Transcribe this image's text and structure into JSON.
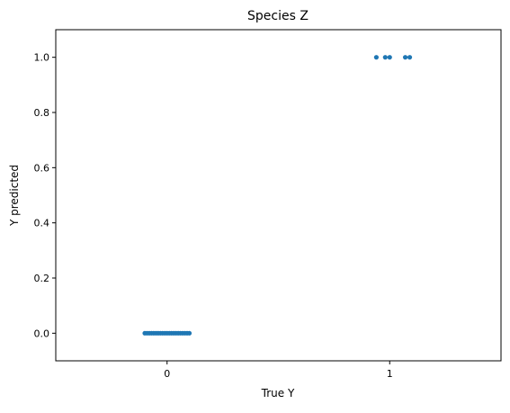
{
  "chart_data": {
    "type": "scatter",
    "title": "Species Z",
    "xlabel": "True Y",
    "ylabel": "Y predicted",
    "xlim": [
      -0.5,
      1.5
    ],
    "ylim": [
      -0.1,
      1.1
    ],
    "x_ticks": [
      0,
      1
    ],
    "x_tick_labels": [
      "0",
      "1"
    ],
    "y_ticks": [
      0.0,
      0.2,
      0.4,
      0.6,
      0.8,
      1.0
    ],
    "y_tick_labels": [
      "0.0",
      "0.2",
      "0.4",
      "0.6",
      "0.8",
      "1.0"
    ],
    "grid": false,
    "marker_color": "#1f77b4",
    "series": [
      {
        "x": [
          -0.1,
          -0.09,
          -0.08,
          -0.07,
          -0.06,
          -0.05,
          -0.04,
          -0.03,
          -0.02,
          -0.01,
          0.0,
          0.01,
          0.02,
          0.03,
          0.04,
          0.05,
          0.06,
          0.07,
          0.08,
          0.09,
          0.1
        ],
        "y": [
          0,
          0,
          0,
          0,
          0,
          0,
          0,
          0,
          0,
          0,
          0,
          0,
          0,
          0,
          0,
          0,
          0,
          0,
          0,
          0,
          0
        ]
      },
      {
        "x": [
          0.94,
          0.98,
          1.0,
          1.07,
          1.09
        ],
        "y": [
          1,
          1,
          1,
          1,
          1
        ]
      }
    ]
  }
}
